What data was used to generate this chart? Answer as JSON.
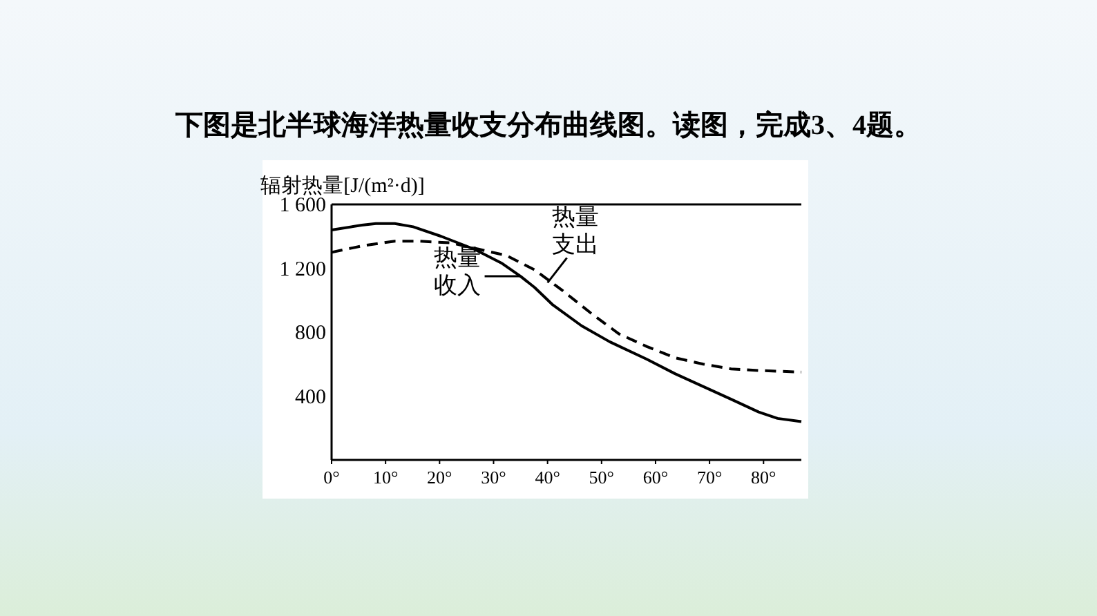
{
  "chart_data": {
    "type": "line",
    "title": "下图是北半球海洋热量收支分布曲线图。读图，完成3、4题。",
    "ylabel": "辐射热量[J/(m²·d)]",
    "xlim": [
      0,
      87
    ],
    "ylim": [
      0,
      1600
    ],
    "xticks": [
      {
        "value": 0,
        "label": "0°"
      },
      {
        "value": 10,
        "label": "10°"
      },
      {
        "value": 20,
        "label": "20°"
      },
      {
        "value": 30,
        "label": "30°"
      },
      {
        "value": 40,
        "label": "40°"
      },
      {
        "value": 50,
        "label": "50°"
      },
      {
        "value": 60,
        "label": "60°"
      },
      {
        "value": 70,
        "label": "70°"
      },
      {
        "value": 80,
        "label": "80°"
      }
    ],
    "yticks": [
      400,
      800,
      {
        "value": 1200,
        "label": "1 200"
      },
      {
        "value": 1600,
        "label": "1 600"
      }
    ],
    "grid": false,
    "annotations": [
      {
        "text": "热量收入",
        "x": 35,
        "y": 1150
      },
      {
        "text": "热量支出",
        "x": 40,
        "y": 1110
      }
    ],
    "series": [
      {
        "color": "#000000",
        "line_style": "solid",
        "x": [
          0,
          5.6,
          8.2,
          11.7,
          15.1,
          20.3,
          26.4,
          31.6,
          35,
          37.6,
          41,
          46.3,
          51.5,
          58.4,
          63.6,
          68.8,
          74,
          79.1,
          82.6,
          87
        ],
        "values": [
          1440,
          1470,
          1480,
          1480,
          1460,
          1400,
          1320,
          1230,
          1150,
          1080,
          970,
          840,
          740,
          630,
          540,
          460,
          380,
          300,
          260,
          240
        ]
      },
      {
        "color": "#000000",
        "line_style": "dashed",
        "x": [
          0,
          5.6,
          11.7,
          16,
          22,
          27.2,
          32.4,
          37.6,
          42.8,
          48,
          53.2,
          58.4,
          63.6,
          68.8,
          74,
          79.1,
          87
        ],
        "values": [
          1300,
          1340,
          1370,
          1370,
          1360,
          1320,
          1280,
          1190,
          1060,
          920,
          790,
          710,
          640,
          600,
          570,
          560,
          550
        ]
      }
    ]
  }
}
